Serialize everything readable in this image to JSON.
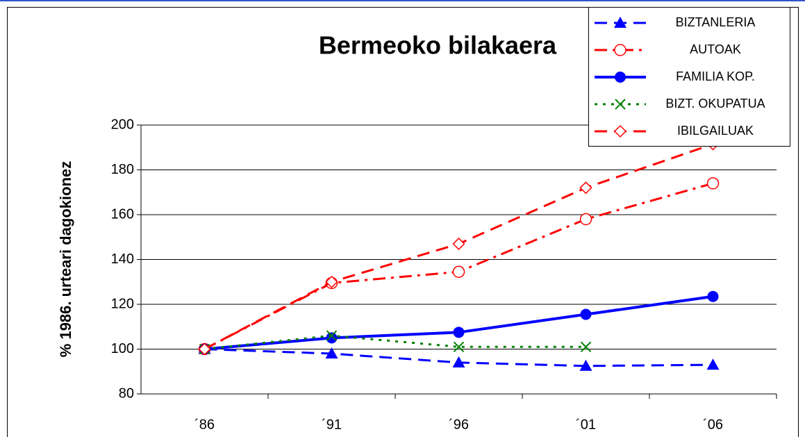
{
  "chart_data": {
    "type": "line",
    "title": "Bermeoko bilakaera",
    "y_label": "% 1986. urteari dagokionez",
    "categories": [
      "´86",
      "´91",
      "´96",
      "´01",
      "´06"
    ],
    "series": [
      {
        "name": "BIZTANLERIA",
        "color": "#0000ff",
        "line_style": "dashed",
        "marker": "triangle",
        "values": [
          100,
          98,
          94,
          92.5,
          93
        ]
      },
      {
        "name": "AUTOAK",
        "color": "#ff0000",
        "line_style": "dashdot",
        "marker": "open-circle",
        "values": [
          100,
          129.5,
          134.5,
          158,
          174
        ]
      },
      {
        "name": "FAMILIA KOP.",
        "color": "#0000ff",
        "line_style": "solid",
        "marker": "circle",
        "values": [
          100,
          105,
          107.5,
          115.5,
          123.5
        ]
      },
      {
        "name": "BIZT. OKUPATUA",
        "color": "#008000",
        "line_style": "dotted",
        "marker": "x",
        "values": [
          100,
          106,
          101,
          101,
          null
        ]
      },
      {
        "name": "IBILGAILUAK",
        "color": "#ff0000",
        "line_style": "dashed",
        "marker": "open-diamond",
        "values": [
          100,
          130,
          147,
          172,
          191.5
        ]
      }
    ],
    "ylim": [
      80,
      200
    ],
    "yticks": [
      80,
      100,
      120,
      140,
      160,
      180,
      200
    ],
    "grid": true,
    "legend": "upper right"
  }
}
